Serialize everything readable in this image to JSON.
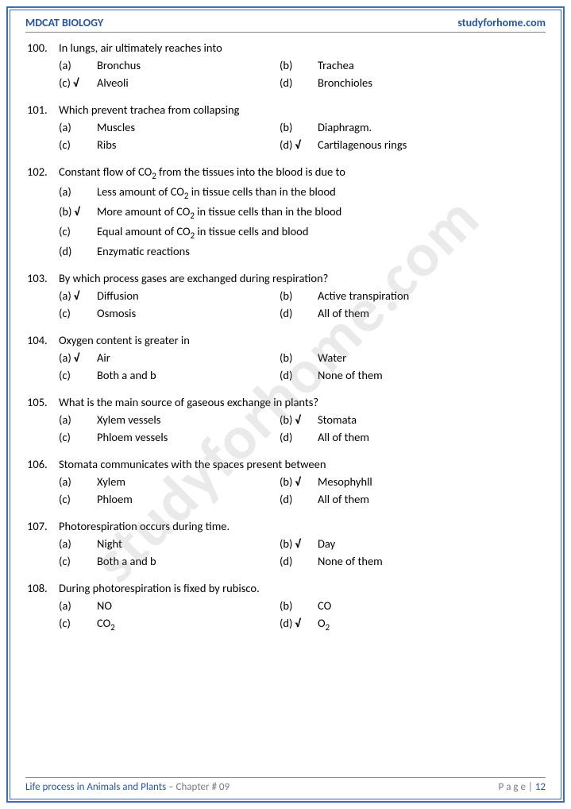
{
  "header": {
    "left": "MDCAT BIOLOGY",
    "right": "studyforhome.com"
  },
  "watermark": "studyforhome.com",
  "footer": {
    "left_blue": "Life process in Animals and Plants",
    "left_gray": " – Chapter # 09",
    "right_gray": "P a g e  | ",
    "right_blue": "12"
  },
  "colors": {
    "brand": "#2a5699",
    "border": "#3b6fb5",
    "gray": "#7a7a7a",
    "wm": "rgba(140,140,140,0.18)"
  },
  "questions": [
    {
      "num": "100.",
      "text": "In lungs, air ultimately reaches into",
      "layout": "two",
      "options": [
        {
          "l": "(a)",
          "t": "Bronchus",
          "c": false
        },
        {
          "l": "(b)",
          "t": "Trachea",
          "c": false
        },
        {
          "l": "(c)",
          "t": "Alveoli",
          "c": true
        },
        {
          "l": "(d)",
          "t": "Bronchioles",
          "c": false
        }
      ]
    },
    {
      "num": "101.",
      "text": "Which prevent trachea from collapsing",
      "layout": "two",
      "options": [
        {
          "l": "(a)",
          "t": "Muscles",
          "c": false
        },
        {
          "l": "(b)",
          "t": "Diaphragm.",
          "c": false
        },
        {
          "l": "(c)",
          "t": "Ribs",
          "c": false
        },
        {
          "l": "(d)",
          "t": "Cartilagenous rings",
          "c": true
        }
      ]
    },
    {
      "num": "102.",
      "text_html": "Constant flow of CO₂ from the tissues into the blood is due to",
      "layout": "one",
      "options": [
        {
          "l": "(a)",
          "t": "Less amount of CO₂ in tissue cells than in the blood",
          "c": false
        },
        {
          "l": "(b)",
          "t": "More amount of CO₂ in tissue cells than in the blood",
          "c": true
        },
        {
          "l": "(c)",
          "t": "Equal amount of CO₂ in tissue cells and blood",
          "c": false
        },
        {
          "l": "(d)",
          "t": "Enzymatic reactions",
          "c": false
        }
      ]
    },
    {
      "num": "103.",
      "text": "By which process gases are exchanged during respiration?",
      "layout": "two",
      "options": [
        {
          "l": "(a)",
          "t": "Diffusion",
          "c": true
        },
        {
          "l": "(b)",
          "t": "Active transpiration",
          "c": false
        },
        {
          "l": "(c)",
          "t": "Osmosis",
          "c": false
        },
        {
          "l": "(d)",
          "t": "All of them",
          "c": false
        }
      ]
    },
    {
      "num": "104.",
      "text": "Oxygen content is greater in",
      "layout": "two",
      "options": [
        {
          "l": "(a)",
          "t": "Air",
          "c": true
        },
        {
          "l": "(b)",
          "t": "Water",
          "c": false
        },
        {
          "l": "(c)",
          "t": "Both a and b",
          "c": false
        },
        {
          "l": "(d)",
          "t": "None of them",
          "c": false
        }
      ]
    },
    {
      "num": "105.",
      "text": "What is the main source of gaseous exchange in plants?",
      "layout": "two",
      "options": [
        {
          "l": "(a)",
          "t": "Xylem vessels",
          "c": false
        },
        {
          "l": "(b)",
          "t": "Stomata",
          "c": true
        },
        {
          "l": "(c)",
          "t": "Phloem vessels",
          "c": false
        },
        {
          "l": "(d)",
          "t": "All of them",
          "c": false
        }
      ]
    },
    {
      "num": "106.",
      "text": "Stomata communicates with the spaces present between",
      "layout": "two",
      "options": [
        {
          "l": "(a)",
          "t": "Xylem",
          "c": false
        },
        {
          "l": "(b)",
          "t": "Mesophyhll",
          "c": true
        },
        {
          "l": "(c)",
          "t": "Phloem",
          "c": false
        },
        {
          "l": "(d)",
          "t": "All of them",
          "c": false
        }
      ]
    },
    {
      "num": "107.",
      "text": "Photorespiration occurs during time.",
      "layout": "two",
      "options": [
        {
          "l": "(a)",
          "t": "Night",
          "c": false
        },
        {
          "l": "(b)",
          "t": "Day",
          "c": true
        },
        {
          "l": "(c)",
          "t": "Both a and b",
          "c": false
        },
        {
          "l": "(d)",
          "t": "None of them",
          "c": false
        }
      ]
    },
    {
      "num": "108.",
      "text": "During photorespiration is fixed by rubisco.",
      "layout": "two",
      "options": [
        {
          "l": "(a)",
          "t": "NO",
          "c": false
        },
        {
          "l": "(b)",
          "t": "CO",
          "c": false
        },
        {
          "l": "(c)",
          "t": "CO₂",
          "c": false
        },
        {
          "l": "(d)",
          "t": "O₂",
          "c": true
        }
      ]
    }
  ]
}
